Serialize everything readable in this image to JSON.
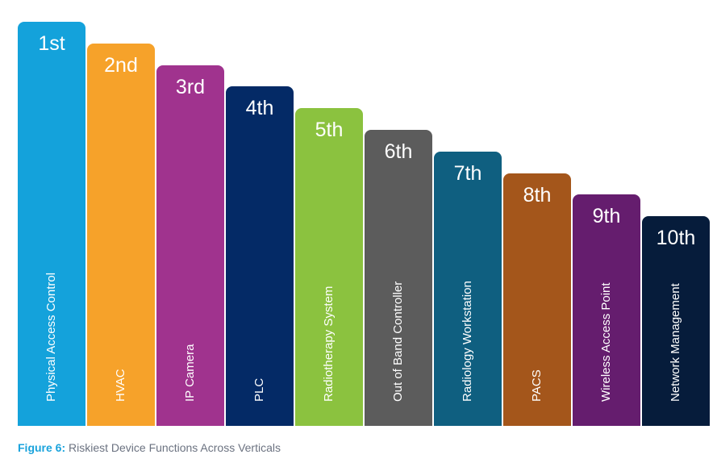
{
  "chart_data": {
    "type": "bar",
    "title": "",
    "categories": [
      "Physical Access Control",
      "HVAC",
      "IP Camera",
      "PLC",
      "Radiotherapy System",
      "Out of Band Controller",
      "Radiology Workstation",
      "PACS",
      "Wireless Access Point",
      "Network Management"
    ],
    "ranks": [
      "1st",
      "2nd",
      "3rd",
      "4th",
      "5th",
      "6th",
      "7th",
      "8th",
      "9th",
      "10th"
    ],
    "values": [
      1,
      2,
      3,
      4,
      5,
      6,
      7,
      8,
      9,
      10
    ],
    "colors": [
      "#14a2db",
      "#f6a22a",
      "#a0338e",
      "#042a66",
      "#8bc23f",
      "#5c5c5c",
      "#0f5f80",
      "#a4561b",
      "#651d6e",
      "#061c3b"
    ],
    "xlabel": "",
    "ylabel": ""
  },
  "caption": {
    "label": "Figure 6:",
    "text": "Riskiest Device Functions Across Verticals"
  }
}
